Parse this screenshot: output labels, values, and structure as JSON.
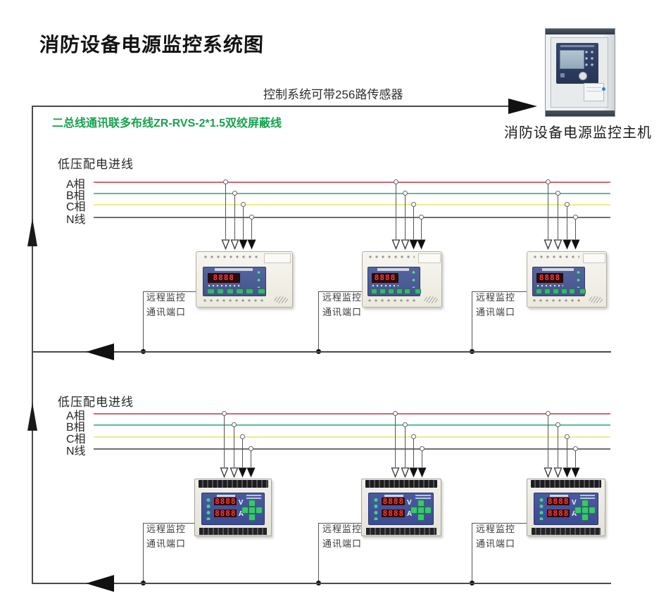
{
  "title": "消防设备电源监控系统图",
  "top": {
    "capacity_label": "控制系统可带256路传感器",
    "bus_type_label": "二总线通讯联多布线ZR-RVS-2*1.5双绞屏蔽线",
    "host_label": "消防设备电源监控主机"
  },
  "port_label": {
    "line1": "远程监控",
    "line2": "通讯端口"
  },
  "sections": [
    {
      "feed_label": "低压配电进线",
      "phases": [
        {
          "label": "A相",
          "color": "#d2686f"
        },
        {
          "label": "B相",
          "color": "#5ebaa1"
        },
        {
          "label": "C相",
          "color": "#f0ec8e"
        },
        {
          "label": "N线",
          "color": "#6f6f6f"
        }
      ]
    },
    {
      "feed_label": "低压配电进线",
      "phases": [
        {
          "label": "A相",
          "color": "#d2686f"
        },
        {
          "label": "B相",
          "color": "#5ebaa1"
        },
        {
          "label": "C相",
          "color": "#f0ec8e"
        },
        {
          "label": "N线",
          "color": "#6f6f6f"
        }
      ]
    }
  ],
  "device_panel": {
    "digits": "8888",
    "voltage_unit": "V",
    "current_unit": "A"
  },
  "colors": {
    "wire": "#4a4a4a",
    "accent_green": "#17a24e",
    "title": "#131313"
  }
}
